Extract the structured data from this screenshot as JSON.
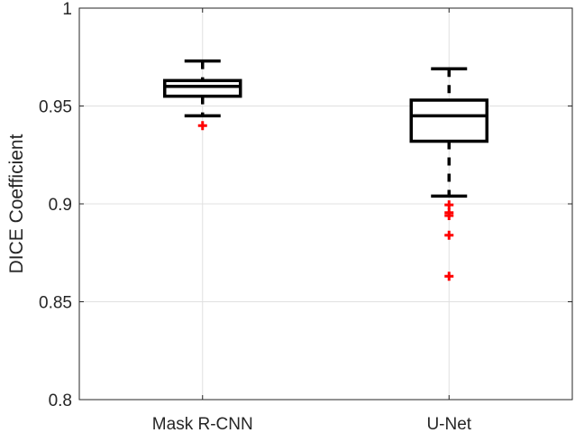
{
  "chart_data": {
    "type": "box",
    "title": "",
    "xlabel": "",
    "ylabel": "DICE Coefficient",
    "ylim": [
      0.8,
      1.0
    ],
    "yticks": [
      0.8,
      0.85,
      0.9,
      0.95,
      1
    ],
    "ytick_labels": [
      "0.8",
      "0.85",
      "0.9",
      "0.95",
      "1"
    ],
    "grid": true,
    "categories": [
      "Mask R-CNN",
      "U-Net"
    ],
    "series": [
      {
        "name": "Mask R-CNN",
        "whisker_low": 0.945,
        "q1": 0.955,
        "median": 0.96,
        "q3": 0.963,
        "whisker_high": 0.973,
        "outliers": [
          0.94
        ]
      },
      {
        "name": "U-Net",
        "whisker_low": 0.904,
        "q1": 0.932,
        "median": 0.945,
        "q3": 0.953,
        "whisker_high": 0.969,
        "outliers": [
          0.8995,
          0.8955,
          0.894,
          0.884,
          0.863
        ]
      }
    ],
    "colors": {
      "box": "#000000",
      "outlier": "#ff0000",
      "grid": "#e0e0e0",
      "axis": "#262626"
    }
  }
}
